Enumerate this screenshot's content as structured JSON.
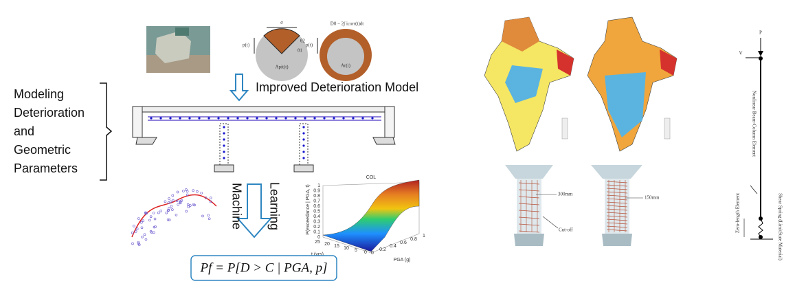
{
  "header": {
    "title": "Improved Deterioration Model"
  },
  "side_label": {
    "lines": [
      "Modeling",
      "Deterioration",
      "and",
      "Geometric",
      "Parameters"
    ]
  },
  "corrosion": {
    "pit_width": "a",
    "pit_depth_left": "p(t)",
    "pit_depth_right": "p(t)",
    "theta1": "θ1",
    "theta2": "θ2",
    "pit_area": "Apit(t)",
    "residual_area": "Ar(t)",
    "formula": "D0 − 2∫ icorr(t)dt"
  },
  "ml": {
    "word1": "Machine",
    "word2": "Learning"
  },
  "surface_plot": {
    "title": "COL",
    "z_label": "P(exceedance | PGA, t)",
    "x_label": "PGA (g)",
    "y_label": "t (yrs)",
    "z_ticks": [
      "0",
      "0.1",
      "0.2",
      "0.3",
      "0.4",
      "0.5",
      "0.6",
      "0.7",
      "0.8",
      "0.9",
      "1"
    ],
    "x_ticks": [
      "0",
      "0.2",
      "0.4",
      "0.6",
      "0.8",
      "1"
    ],
    "y_ticks": [
      "25",
      "20",
      "15",
      "10",
      "5",
      "0"
    ]
  },
  "formula": {
    "text": "Pf = P[D > C | PGA, p]"
  },
  "columns": {
    "spacing_left": "300mm",
    "cutoff": "Cut-off",
    "spacing_right": "150mm"
  },
  "model": {
    "load_p": "P",
    "load_v": "V",
    "element": "Nonlinear Beam-Column Element",
    "zero_length": "Zero-length Element",
    "spring": "Shear Spring (LimitState Material)"
  }
}
